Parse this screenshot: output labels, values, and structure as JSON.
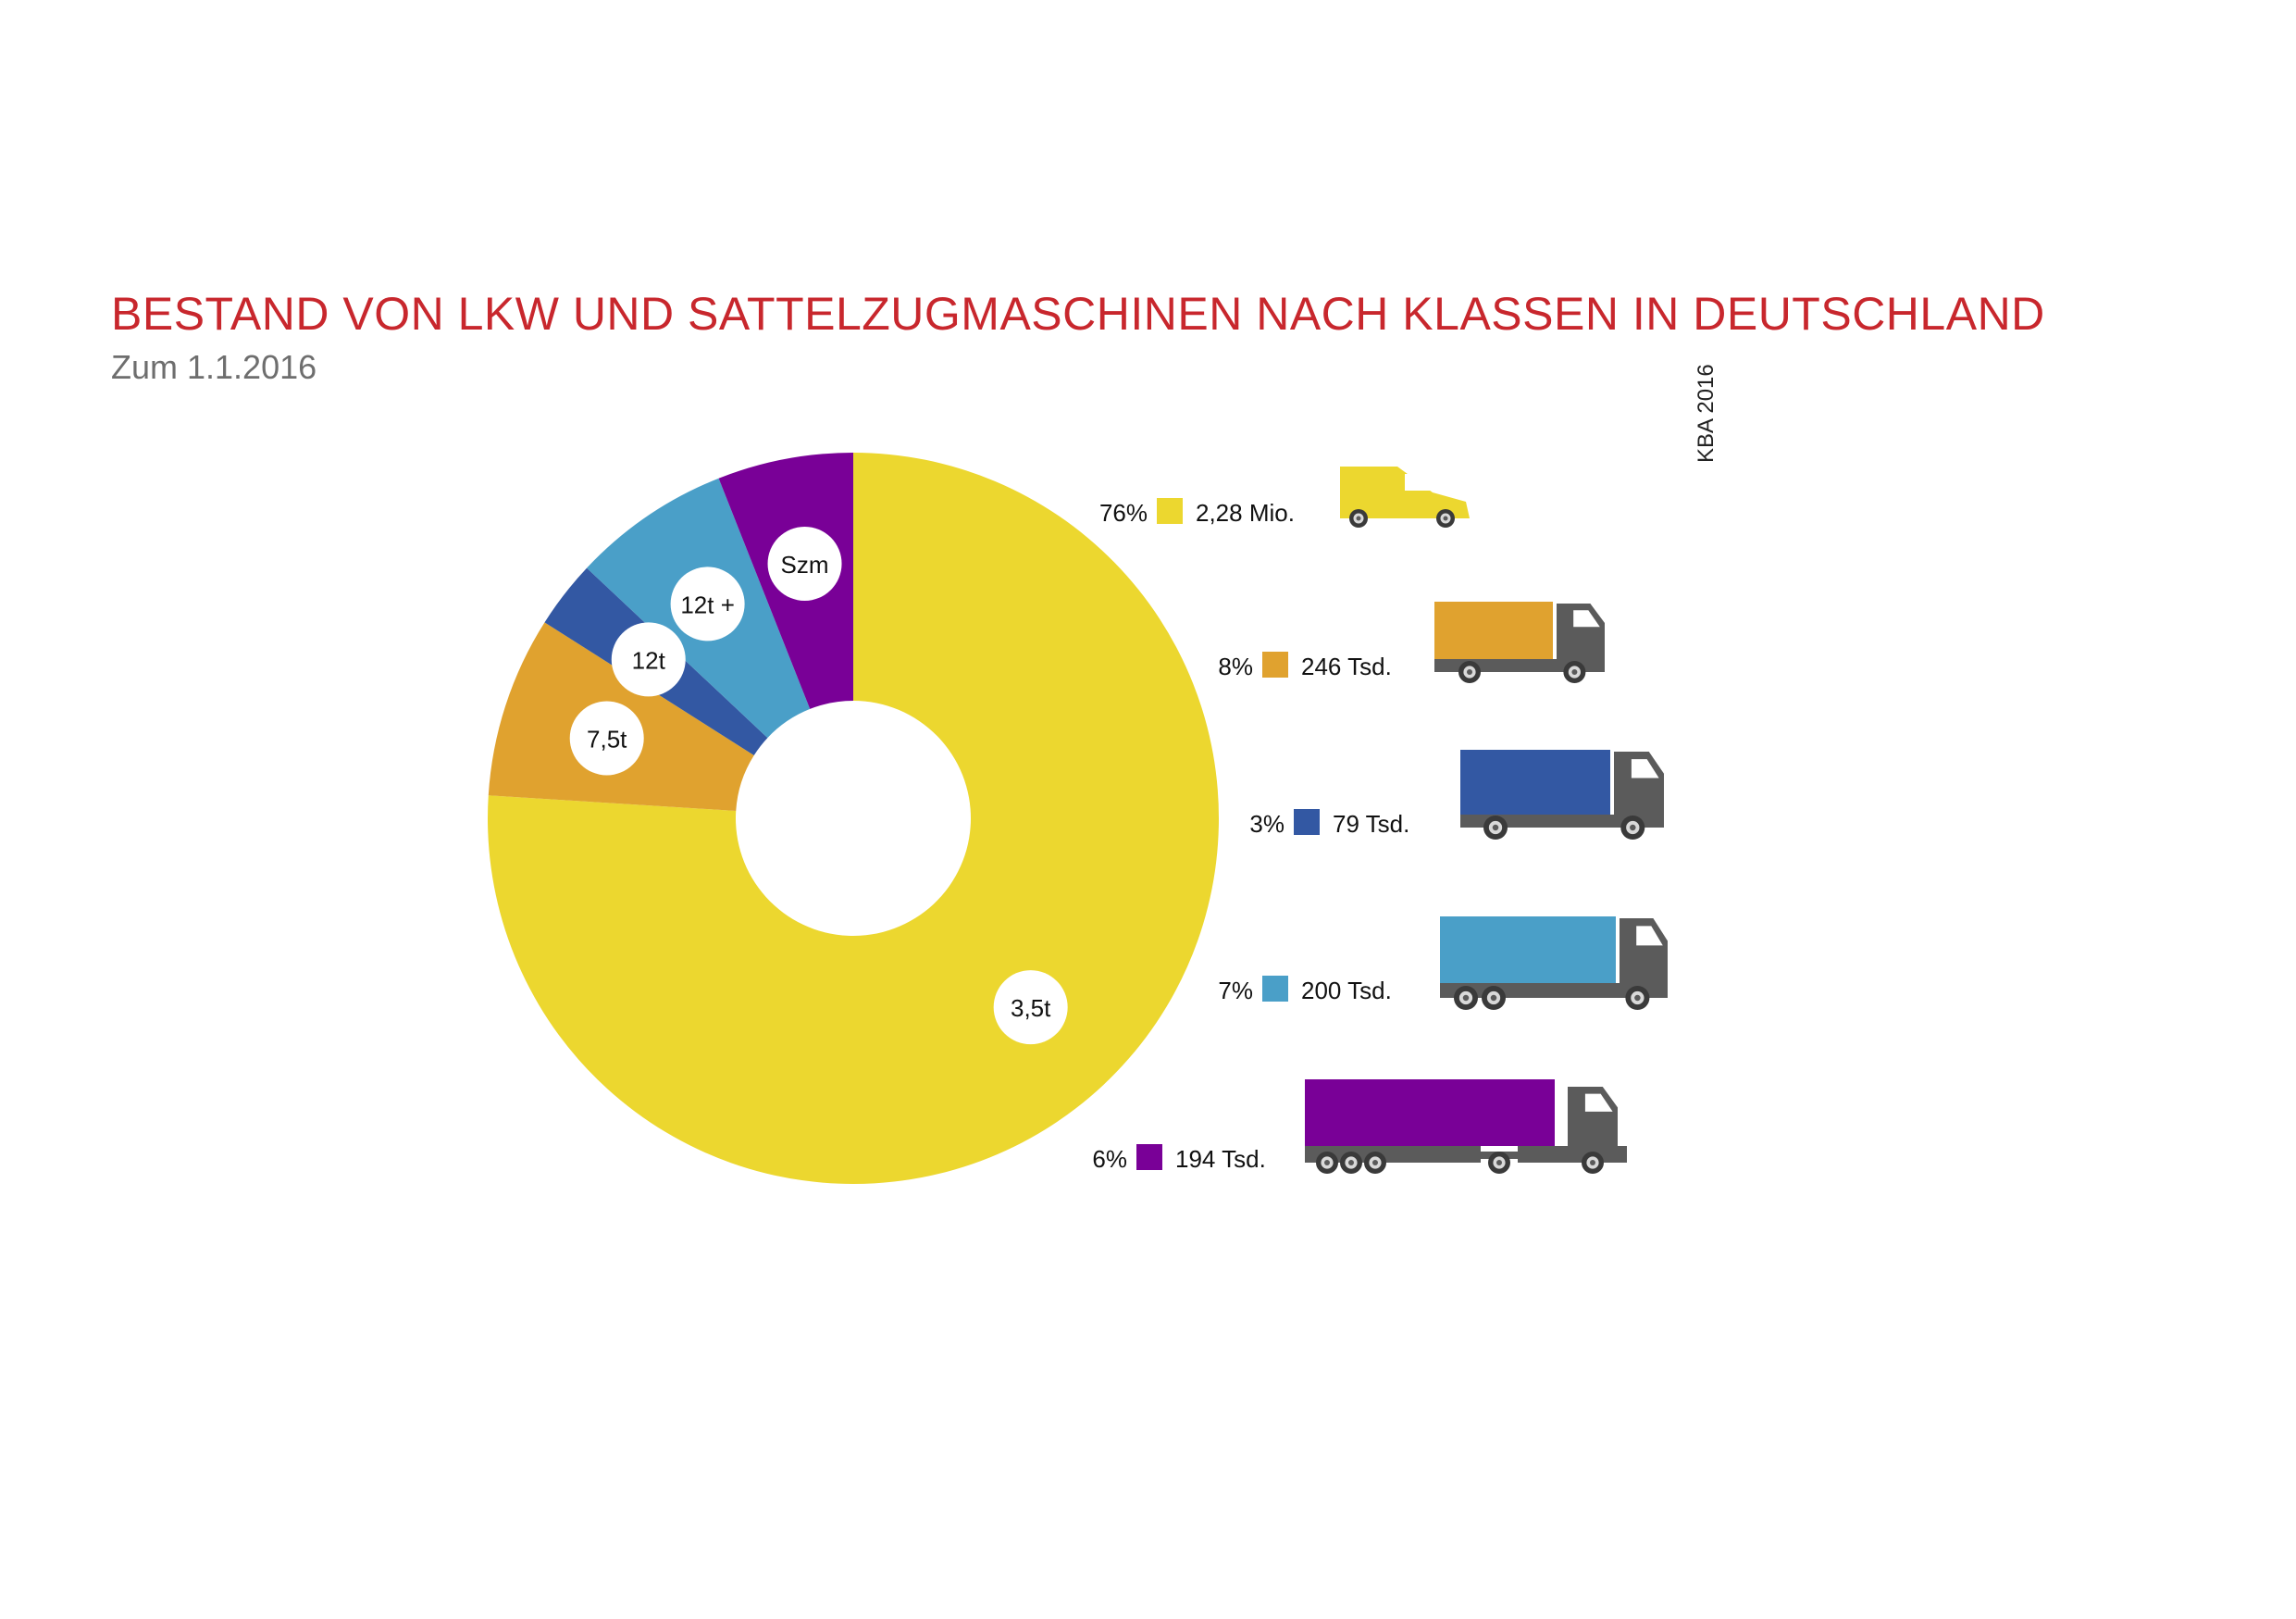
{
  "chart_data": {
    "type": "pie",
    "title": "BESTAND VON LKW UND SATTELZUGMASCHINEN NACH KLASSEN IN DEUTSCHLAND",
    "subtitle": "Zum 1.1.2016",
    "source": "KBA 2016",
    "donut": true,
    "slices": [
      {
        "label": "3,5t",
        "percent": "76%",
        "share": 76,
        "value": "2,28 Mio.",
        "color": "#ecd72f",
        "icon": "van-icon"
      },
      {
        "label": "7,5t",
        "percent": "8%",
        "share": 8,
        "value": "246 Tsd.",
        "color": "#e0a22f",
        "icon": "box-truck-icon"
      },
      {
        "label": "12t",
        "percent": "3%",
        "share": 3,
        "value": "79 Tsd.",
        "color": "#3358a3",
        "icon": "box-truck-icon"
      },
      {
        "label": "12t +",
        "percent": "7%",
        "share": 7,
        "value": "200 Tsd.",
        "color": "#4a9fc8",
        "icon": "heavy-truck-icon"
      },
      {
        "label": "Szm",
        "percent": "6%",
        "share": 6,
        "value": "194 Tsd.",
        "color": "#790097",
        "icon": "semi-truck-icon"
      }
    ]
  },
  "colors": {
    "title": "#c8272d",
    "subtitle": "#6e6e6e",
    "truck_cab": "#5b5b5b"
  }
}
